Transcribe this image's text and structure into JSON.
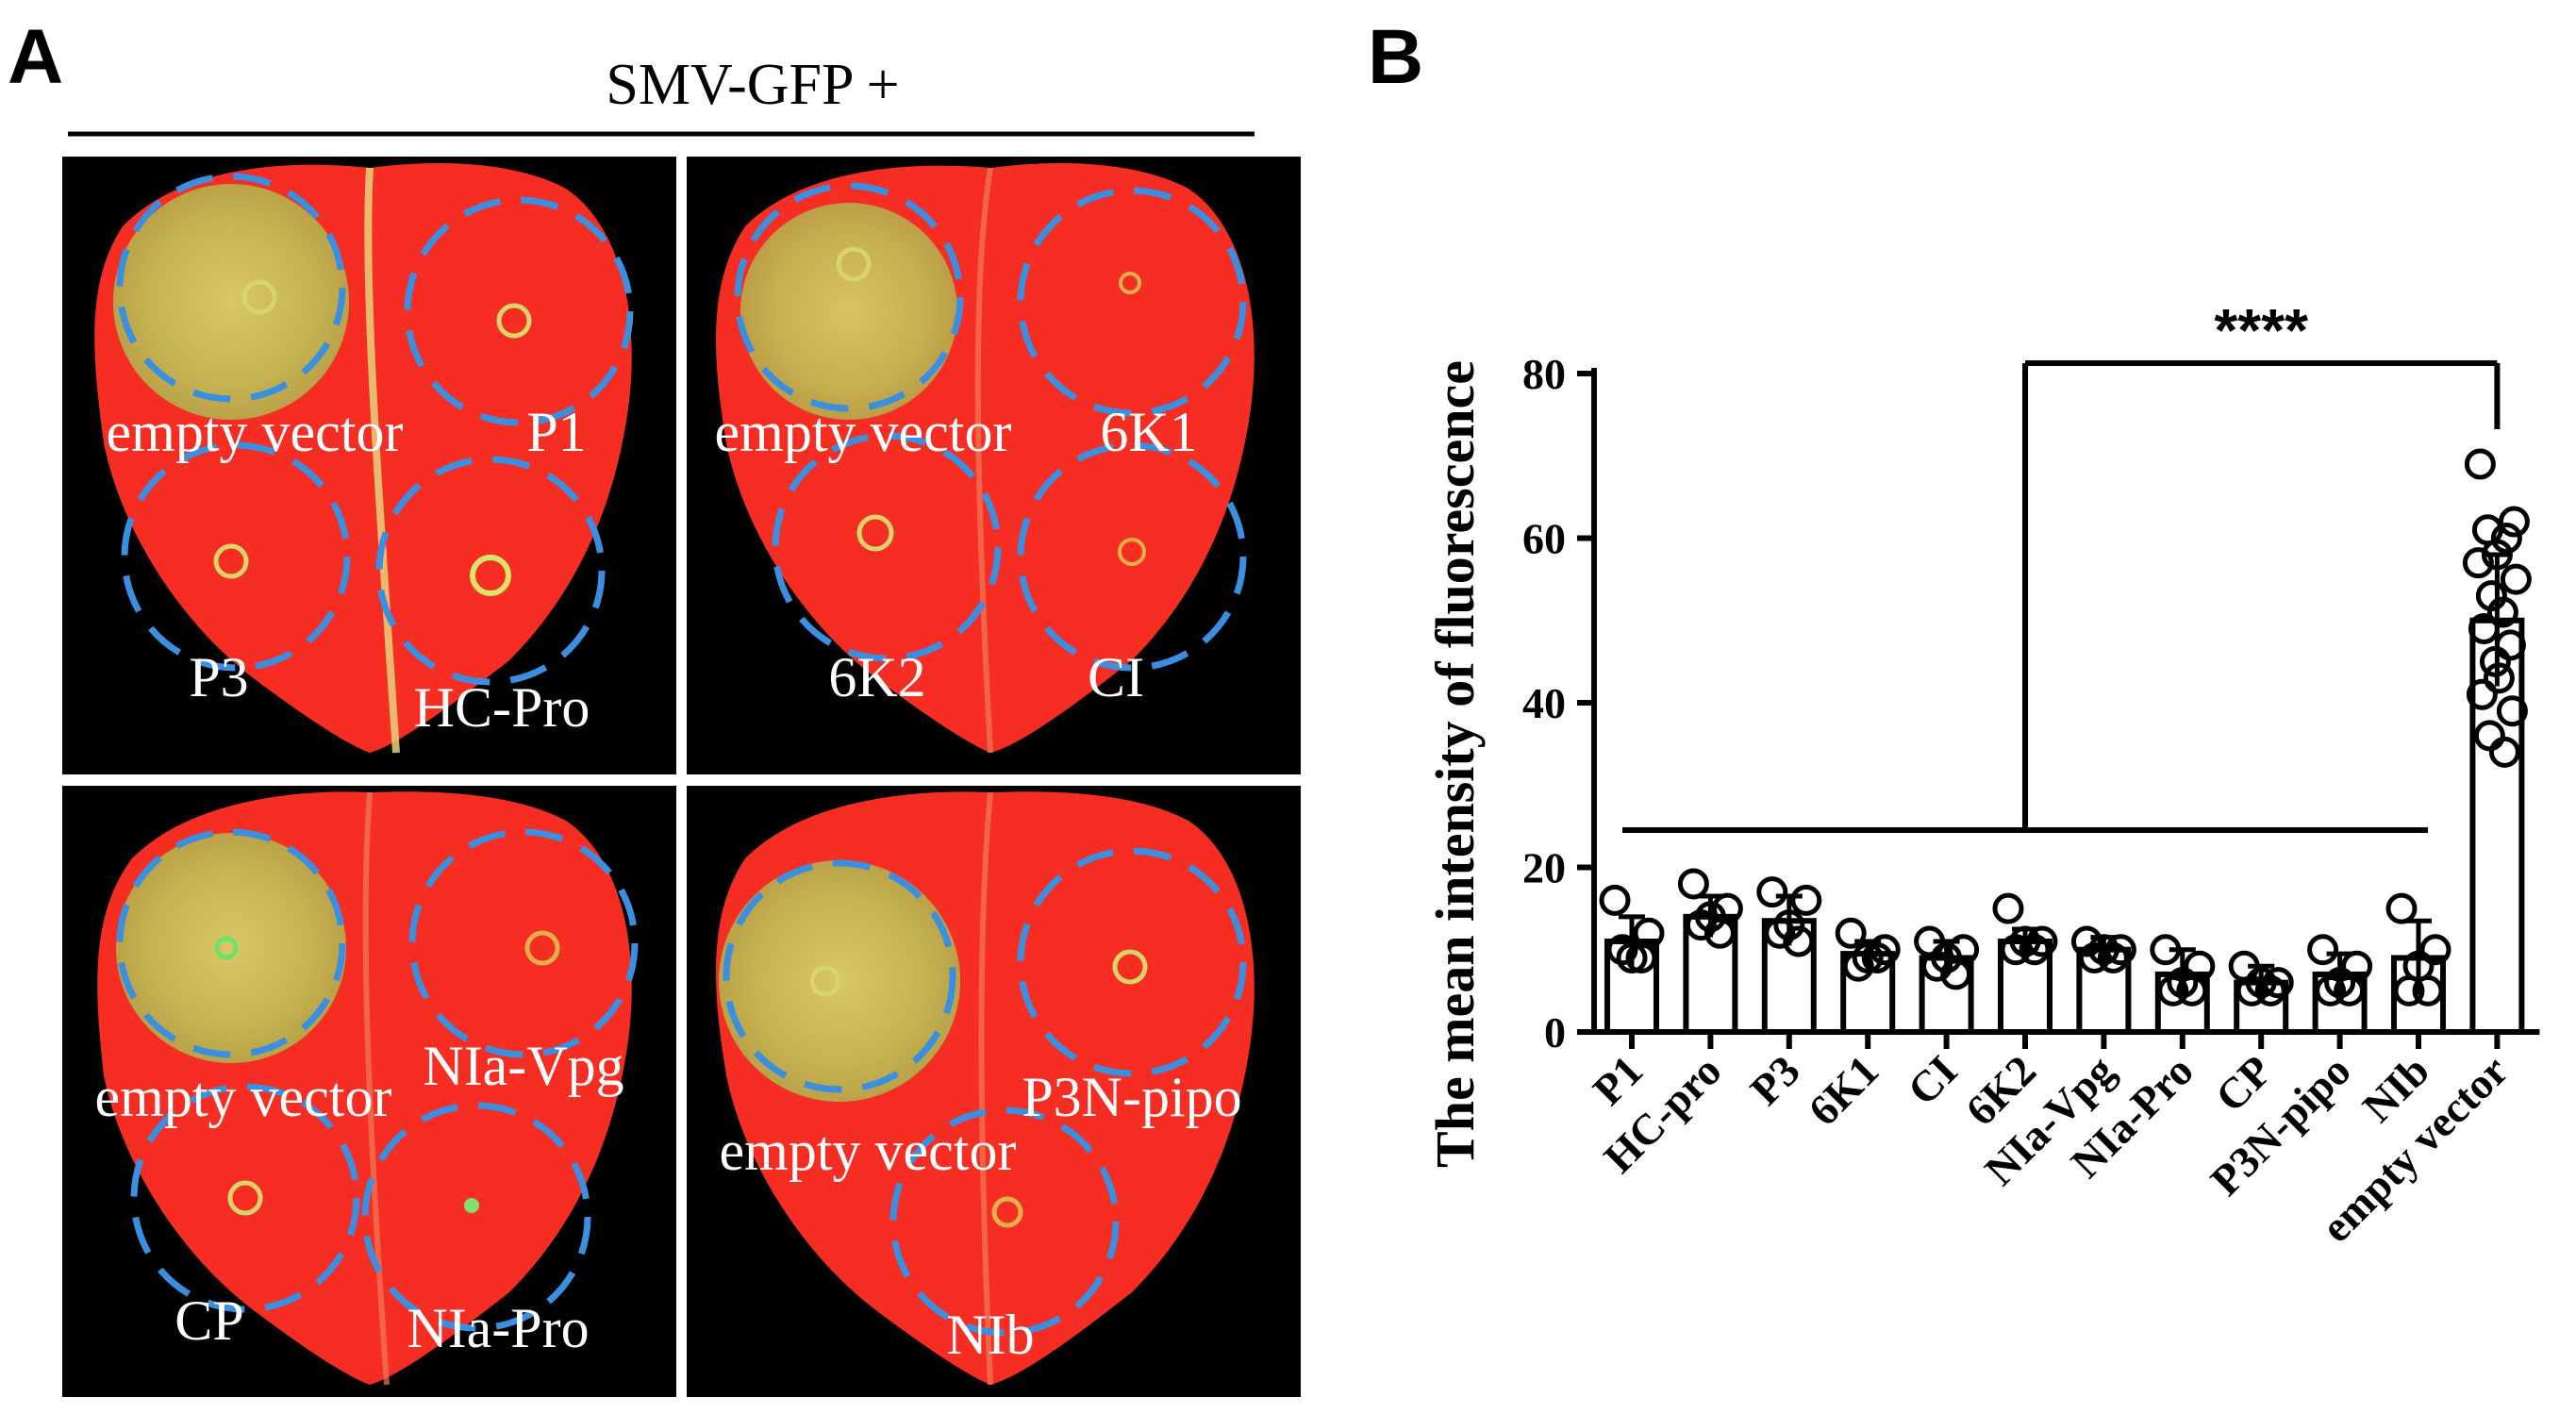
{
  "panel_a": {
    "label": "A",
    "header": "SMV-GFP +",
    "photos": [
      {
        "labels": [
          "empty vector",
          "P1",
          "P3",
          "HC-Pro"
        ]
      },
      {
        "labels": [
          "empty vector",
          "6K1",
          "6K2",
          "CI"
        ]
      },
      {
        "labels": [
          "empty vector",
          "NIa-Vpg",
          "CP",
          "NIa-Pro"
        ]
      },
      {
        "labels": [
          "empty vector",
          "P3N-pipo",
          "NIb"
        ]
      }
    ],
    "colors": {
      "leaf": "#f52d22",
      "gfp": "#c9c25a",
      "background": "#000000",
      "circle": "#3a8fe0"
    }
  },
  "chart_data": {
    "type": "bar",
    "panel_label": "B",
    "title": "",
    "xlabel": "",
    "ylabel": "The mean intensity of fluorescence",
    "ylim": [
      0,
      80
    ],
    "yticks": [
      0,
      20,
      40,
      60,
      80
    ],
    "categories": [
      "P1",
      "HC-pro",
      "P3",
      "6K1",
      "CI",
      "6K2",
      "NIa-Vpg",
      "NIa-Pro",
      "CP",
      "P3N-pipo",
      "NIb",
      "empty vector"
    ],
    "values": [
      11,
      14,
      13.5,
      9.5,
      9,
      11,
      10,
      7,
      6,
      7,
      9,
      50
    ],
    "errors": [
      3,
      2.5,
      3,
      1.5,
      2,
      1.5,
      1.5,
      3,
      2,
      2.5,
      4.5,
      8
    ],
    "points": [
      [
        16,
        12,
        10,
        9,
        9
      ],
      [
        18,
        15,
        13,
        12,
        14
      ],
      [
        17,
        16,
        12,
        11,
        13
      ],
      [
        12,
        10,
        8,
        9,
        9
      ],
      [
        11,
        10,
        8,
        7,
        9
      ],
      [
        15,
        11,
        10,
        10,
        11
      ],
      [
        11,
        10,
        9,
        9,
        10
      ],
      [
        10,
        8,
        5,
        5,
        6
      ],
      [
        8,
        6,
        5,
        5,
        6
      ],
      [
        10,
        8,
        5,
        5,
        6
      ],
      [
        15,
        10,
        5,
        5,
        8
      ],
      [
        69,
        62,
        61,
        60,
        58,
        57,
        55,
        53,
        51,
        49,
        47,
        45,
        43,
        41,
        39,
        36,
        34
      ]
    ],
    "significance": {
      "label": "****",
      "group_from": "P1",
      "group_to": "NIb",
      "compare": "empty vector"
    },
    "colors": {
      "bar_fill": "#ffffff",
      "stroke": "#000000"
    }
  }
}
